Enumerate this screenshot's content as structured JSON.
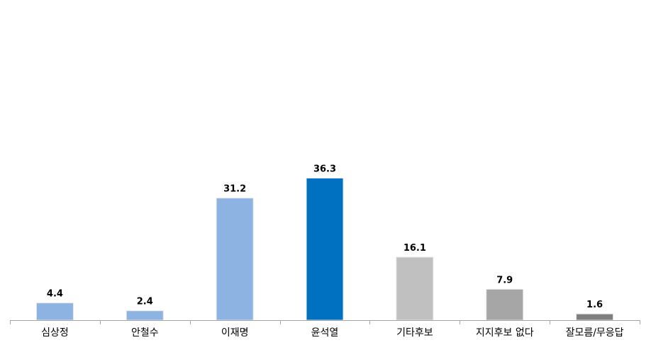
{
  "chart_data": {
    "type": "bar",
    "title": "",
    "xlabel": "",
    "ylabel": "",
    "ylim": [
      0,
      80
    ],
    "grid": false,
    "legend": "none",
    "categories": [
      "심상정",
      "안철수",
      "이재명",
      "윤석열",
      "기타후보",
      "지지후보 없다",
      "잘모름/무응답"
    ],
    "values": [
      4.4,
      2.4,
      31.2,
      36.3,
      16.1,
      7.9,
      1.6
    ],
    "value_labels": [
      "4.4",
      "2.4",
      "31.2",
      "36.3",
      "16.1",
      "7.9",
      "1.6"
    ],
    "colors": [
      "#8DB3E2",
      "#8DB3E2",
      "#8DB3E2",
      "#0070C0",
      "#C0C0C0",
      "#A6A6A6",
      "#7F7F7F"
    ]
  }
}
